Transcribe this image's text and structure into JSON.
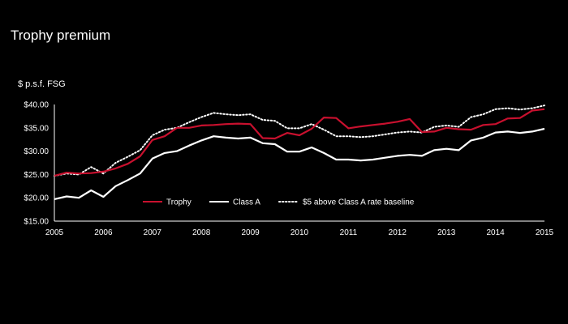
{
  "chart_data": {
    "type": "line",
    "title": "Trophy premium",
    "ylabel": "$ p.s.f. FSG",
    "xlabel": "",
    "xlim": [
      2005,
      2015
    ],
    "ylim": [
      15,
      40
    ],
    "x_ticks": [
      2005,
      2006,
      2007,
      2008,
      2009,
      2010,
      2011,
      2012,
      2013,
      2014,
      2015
    ],
    "x_tick_labels": [
      "2005",
      "2006",
      "2007",
      "2008",
      "2009",
      "2010",
      "2011",
      "2012",
      "2013",
      "2014",
      "2015"
    ],
    "y_ticks": [
      15,
      20,
      25,
      30,
      35,
      40
    ],
    "y_tick_labels": [
      "$15.00",
      "$20.00",
      "$25.00",
      "$30.00",
      "$35.00",
      "$40.00"
    ],
    "grid": false,
    "legend_position": "bottom-center",
    "x": [
      2005.0,
      2005.25,
      2005.5,
      2005.75,
      2006.0,
      2006.25,
      2006.5,
      2006.75,
      2007.0,
      2007.25,
      2007.5,
      2007.75,
      2008.0,
      2008.25,
      2008.5,
      2008.75,
      2009.0,
      2009.25,
      2009.5,
      2009.75,
      2010.0,
      2010.25,
      2010.5,
      2010.75,
      2011.0,
      2011.25,
      2011.5,
      2011.75,
      2012.0,
      2012.25,
      2012.5,
      2012.75,
      2013.0,
      2013.25,
      2013.5,
      2013.75,
      2014.0,
      2014.25,
      2014.5,
      2014.75,
      2015.0
    ],
    "series": [
      {
        "name": "Trophy",
        "color": "#c8102e",
        "style": "solid",
        "values": [
          24.7,
          25.4,
          25.2,
          25.3,
          25.6,
          26.3,
          27.3,
          28.9,
          32.4,
          33.2,
          35.0,
          35.0,
          35.5,
          35.6,
          35.8,
          35.9,
          35.8,
          32.8,
          32.7,
          33.9,
          33.4,
          34.8,
          37.2,
          37.1,
          34.9,
          35.3,
          35.6,
          35.9,
          36.3,
          36.9,
          34.1,
          34.2,
          35.0,
          34.7,
          34.6,
          35.6,
          35.8,
          37.0,
          37.1,
          38.7,
          39.0
        ]
      },
      {
        "name": "Class A",
        "color": "#ffffff",
        "style": "solid",
        "values": [
          19.7,
          20.3,
          20.0,
          21.6,
          20.2,
          22.5,
          23.8,
          25.2,
          28.4,
          29.6,
          30.0,
          31.2,
          32.3,
          33.2,
          32.9,
          32.7,
          32.9,
          31.7,
          31.5,
          29.9,
          29.9,
          30.8,
          29.6,
          28.2,
          28.2,
          28.0,
          28.2,
          28.6,
          29.0,
          29.2,
          29.0,
          30.2,
          30.5,
          30.2,
          32.3,
          32.9,
          34.0,
          34.2,
          33.9,
          34.2,
          34.8
        ]
      },
      {
        "name": "$5 above Class A rate baseline",
        "color": "#ffffff",
        "style": "dotted",
        "values": [
          24.7,
          25.2,
          25.0,
          26.6,
          25.2,
          27.5,
          28.8,
          30.2,
          33.4,
          34.6,
          35.0,
          36.2,
          37.3,
          38.2,
          37.9,
          37.7,
          37.9,
          36.7,
          36.5,
          34.9,
          34.9,
          35.8,
          34.6,
          33.2,
          33.2,
          33.0,
          33.2,
          33.6,
          34.0,
          34.2,
          34.0,
          35.2,
          35.5,
          35.2,
          37.3,
          37.9,
          39.0,
          39.2,
          38.9,
          39.2,
          39.8
        ]
      }
    ]
  }
}
